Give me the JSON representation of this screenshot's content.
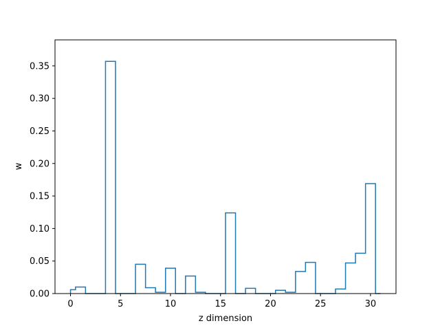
{
  "chart_data": {
    "type": "step-histogram",
    "xlabel": "z dimension",
    "ylabel": "w",
    "xlim": [
      -1.55,
      32.55
    ],
    "ylim": [
      0,
      0.39
    ],
    "xticks": [
      0,
      5,
      10,
      15,
      20,
      25,
      30
    ],
    "xtick_labels": [
      "0",
      "5",
      "10",
      "15",
      "20",
      "25",
      "30"
    ],
    "yticks": [
      0.0,
      0.05,
      0.1,
      0.15,
      0.2,
      0.25,
      0.3,
      0.35
    ],
    "ytick_labels": [
      "0.00",
      "0.05",
      "0.10",
      "0.15",
      "0.20",
      "0.25",
      "0.30",
      "0.35"
    ],
    "bin_edges": [
      -0.0,
      0.5,
      1.5,
      2.5,
      3.5,
      4.5,
      5.5,
      6.5,
      7.5,
      8.5,
      9.5,
      10.5,
      11.5,
      12.5,
      13.5,
      14.5,
      15.5,
      16.5,
      17.5,
      18.5,
      19.5,
      20.5,
      21.5,
      22.5,
      23.5,
      24.5,
      25.5,
      26.5,
      27.5,
      28.5,
      29.5,
      30.5,
      31.0
    ],
    "values": [
      0.006,
      0.01,
      0.0,
      0.0,
      0.357,
      0.0,
      0.0,
      0.045,
      0.009,
      0.002,
      0.039,
      0.0,
      0.027,
      0.002,
      0.0,
      0.0,
      0.124,
      0.0,
      0.008,
      0.0,
      0.0,
      0.005,
      0.002,
      0.034,
      0.048,
      0.0,
      0.0,
      0.007,
      0.047,
      0.062,
      0.169,
      0.0
    ],
    "line_color": "#1f77b4",
    "grid": false
  }
}
